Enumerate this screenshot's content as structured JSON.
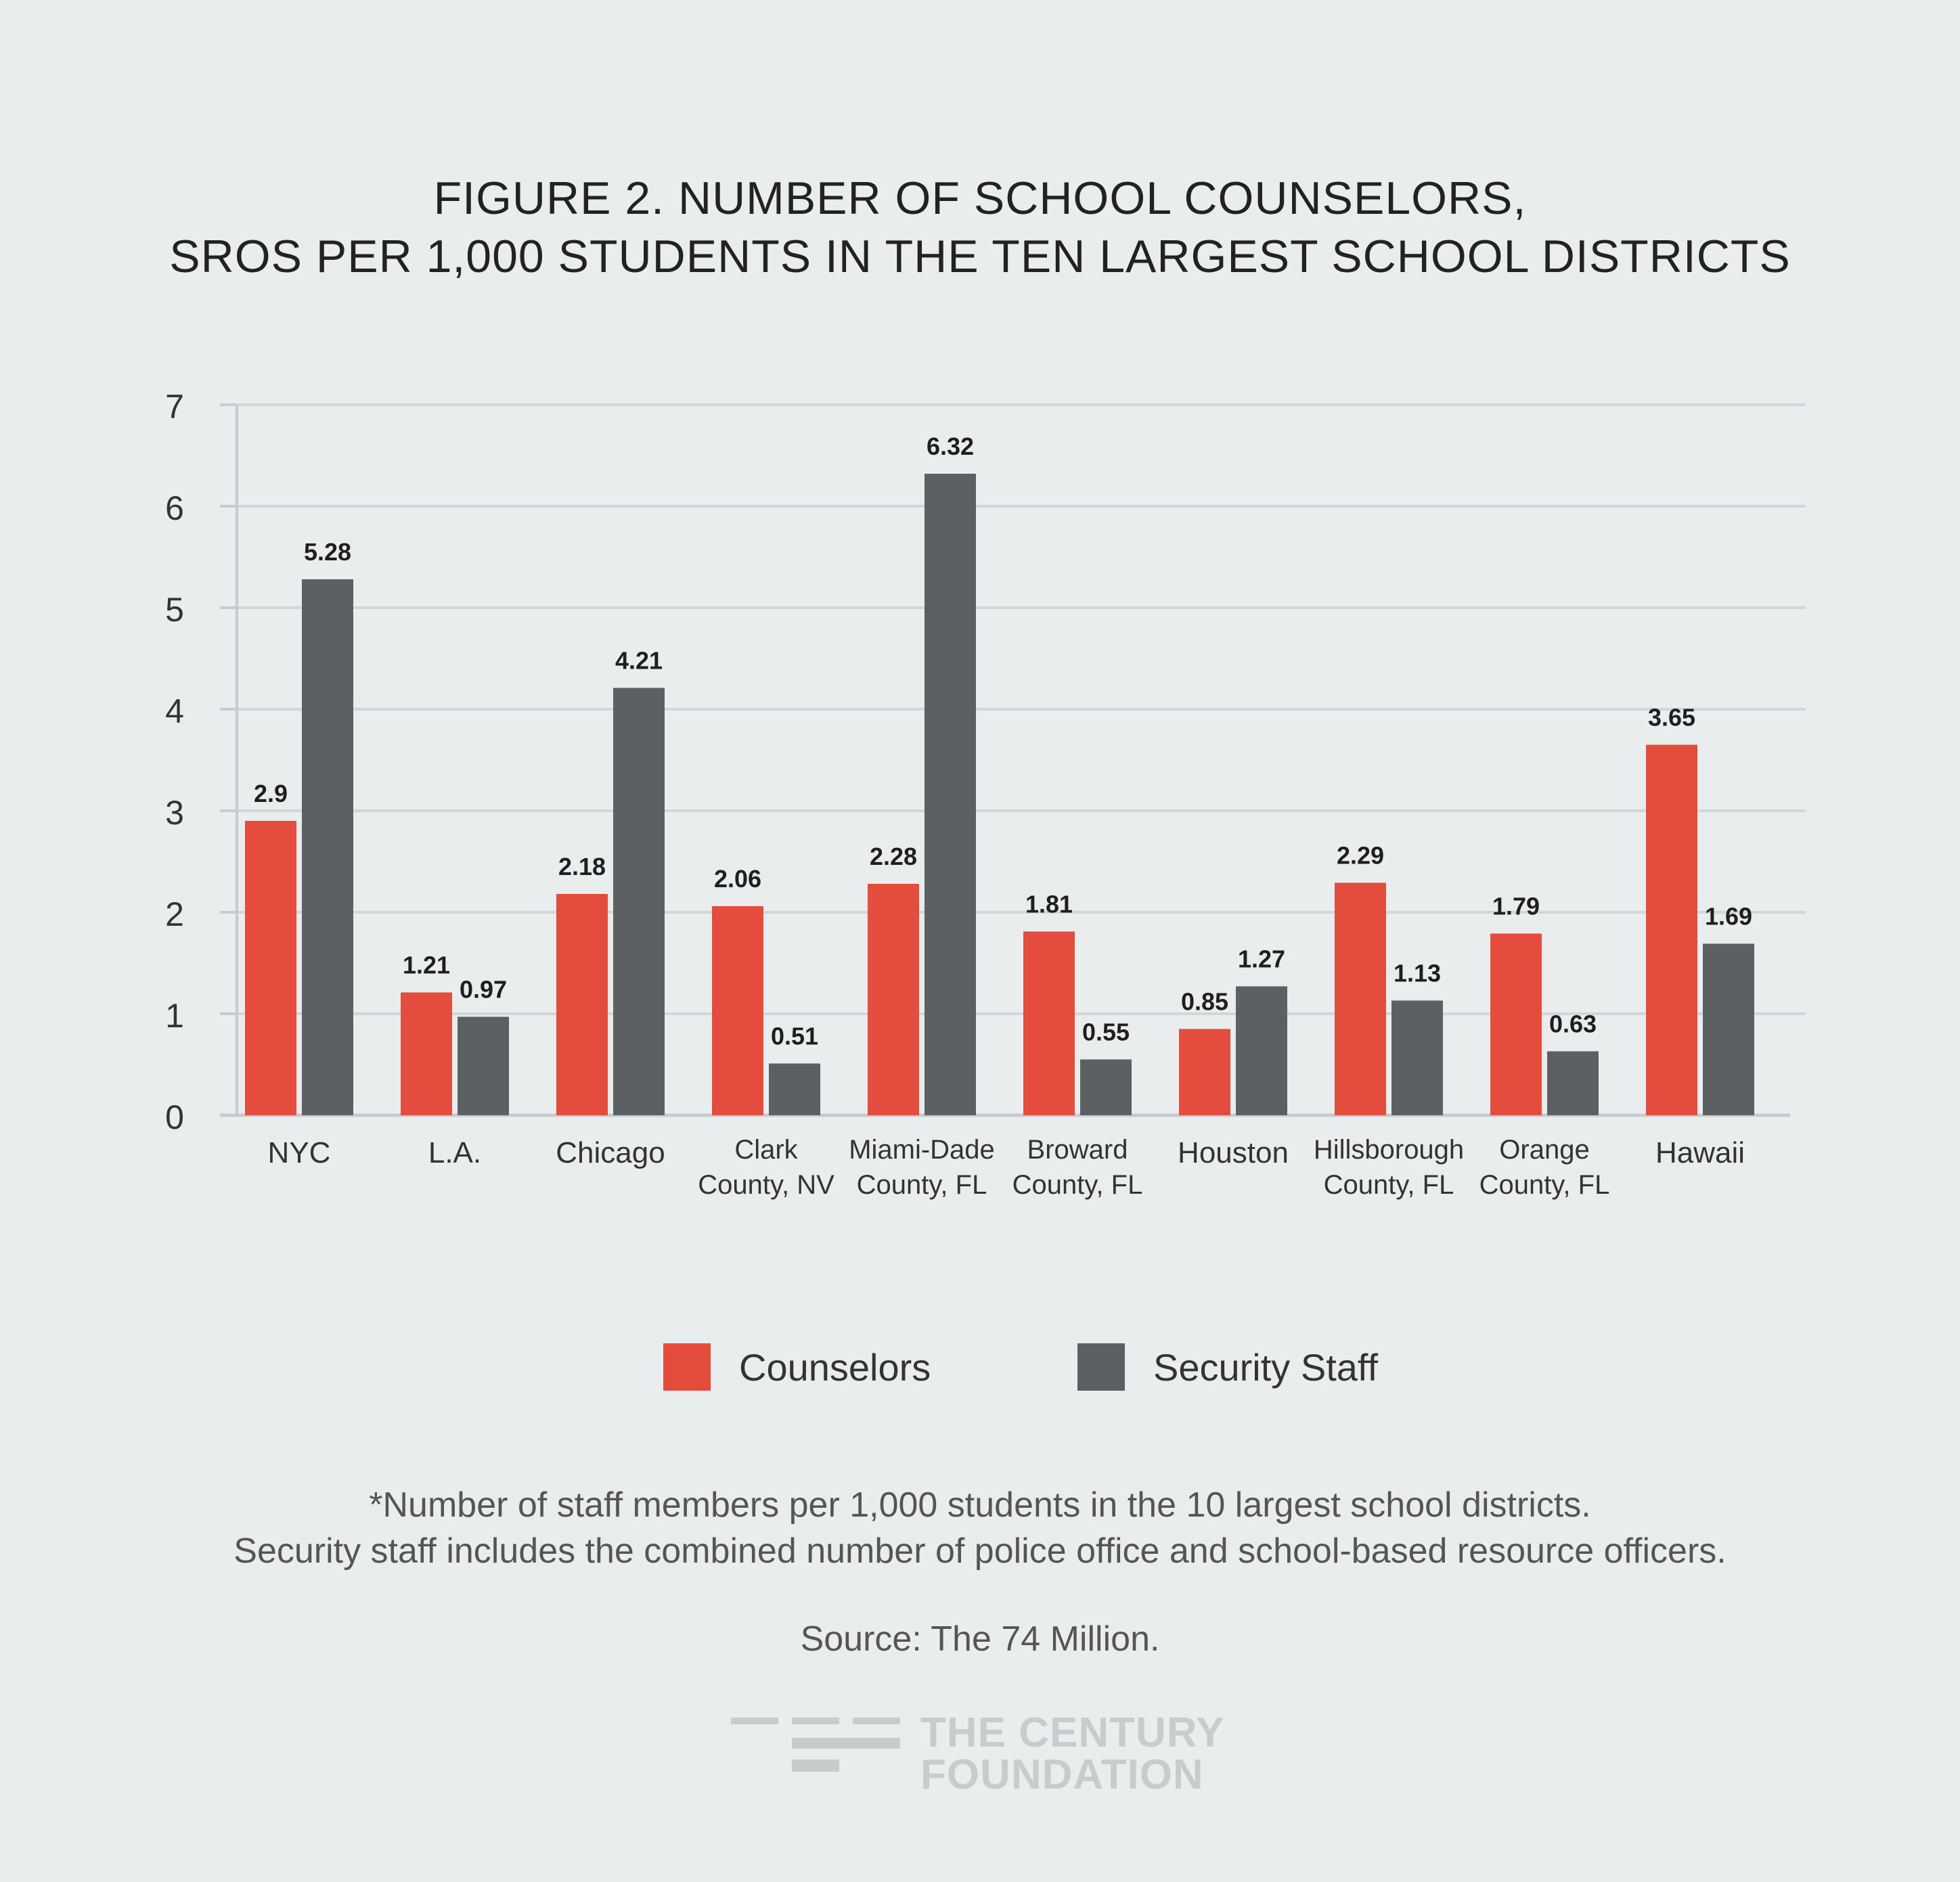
{
  "title": {
    "line1": "FIGURE 2.  NUMBER OF SCHOOL COUNSELORS,",
    "line2": "SROS PER 1,000 STUDENTS IN THE TEN LARGEST SCHOOL DISTRICTS"
  },
  "colors": {
    "counselors": "#e44d3e",
    "security": "#5d6062",
    "gridline": "#d3d6d8",
    "axis": "#c8cbcd",
    "background": "#e9edee"
  },
  "chart_data": {
    "type": "bar",
    "title": "FIGURE 2. NUMBER OF SCHOOL COUNSELORS, SROS PER 1,000 STUDENTS IN THE TEN LARGEST SCHOOL DISTRICTS",
    "categories": [
      [
        "NYC"
      ],
      [
        "L.A."
      ],
      [
        "Chicago"
      ],
      [
        "Clark",
        "County, NV"
      ],
      [
        "Miami-Dade",
        "County, FL"
      ],
      [
        "Broward",
        "County, FL"
      ],
      [
        "Houston"
      ],
      [
        "Hillsborough",
        "County, FL"
      ],
      [
        "Orange",
        "County, FL"
      ],
      [
        "Hawaii"
      ]
    ],
    "series": [
      {
        "name": "Counselors",
        "values": [
          2.9,
          1.21,
          2.18,
          2.06,
          2.28,
          1.81,
          0.85,
          2.29,
          1.79,
          3.65
        ]
      },
      {
        "name": "Security Staff",
        "values": [
          5.28,
          0.97,
          4.21,
          0.51,
          6.32,
          0.55,
          1.27,
          1.13,
          0.63,
          1.69
        ]
      }
    ],
    "yticks": [
      "0",
      "1",
      "2",
      "3",
      "4",
      "5",
      "6",
      "7"
    ],
    "ylim": [
      0,
      7
    ],
    "grid": true,
    "xlabel": "",
    "ylabel": "",
    "legend": "bottom-center"
  },
  "legend": {
    "counselors_label": "Counselors",
    "security_label": "Security Staff"
  },
  "footnote": {
    "line1": "*Number of staff members per 1,000 students in the 10 largest school districts.",
    "line2": "Security staff includes the combined number of police office and school-based resource officers."
  },
  "source": "Source: The 74 Million.",
  "logo": {
    "line1": "THE CENTURY",
    "line2": "FOUNDATION"
  }
}
